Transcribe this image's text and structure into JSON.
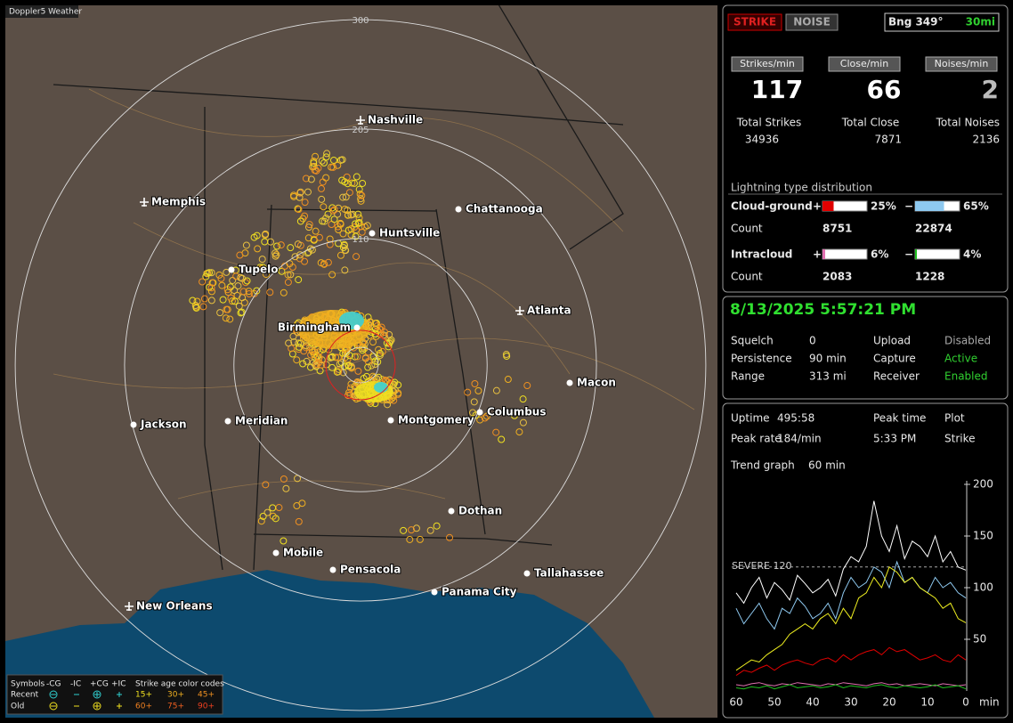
{
  "map": {
    "title": "Doppler5 Weather",
    "range_rings": [
      300,
      205,
      110
    ],
    "cities": [
      "Nashville",
      "Memphis",
      "Chattanooga",
      "Huntsville",
      "Tupelo",
      "Atlanta",
      "Birmingham",
      "Macon",
      "Jackson",
      "Meridian",
      "Montgomery",
      "Columbus",
      "Dothan",
      "Mobile",
      "Pensacola",
      "Tallahassee",
      "Panama City",
      "New Orleans"
    ],
    "legend": {
      "symbols": "Symbols",
      "cg_minus": "-CG",
      "ic_minus": "-IC",
      "cg_plus": "+CG",
      "ic_plus": "+IC",
      "age_title": "Strike age color codes",
      "recent": "Recent",
      "old": "Old",
      "recent_ages": [
        "15+",
        "30+",
        "45+"
      ],
      "old_ages": [
        "60+",
        "75+",
        "90+"
      ]
    }
  },
  "status": {
    "strike": "STRIKE",
    "noise": "NOISE",
    "bearing": "Bng 349°",
    "distance": "30mi"
  },
  "rates": [
    {
      "label": "Strikes/min",
      "value": 117,
      "total_label": "Total Strikes",
      "total": 34936
    },
    {
      "label": "Close/min",
      "value": 66,
      "total_label": "Total Close",
      "total": 7871
    },
    {
      "label": "Noises/min",
      "value": 2,
      "total_label": "Total Noises",
      "total": 2136
    }
  ],
  "distribution": {
    "title": "Lightning type distribution",
    "count_label": "Count",
    "plus": "+",
    "minus": "−",
    "rows": [
      {
        "name": "Cloud-ground",
        "plus_pct": {
          "value": 25,
          "label": "25%"
        },
        "minus_pct": {
          "value": 65,
          "label": "65%"
        },
        "plus_count": 8751,
        "minus_count": 22874,
        "colors": [
          "#e00000",
          "#8ec9f0"
        ]
      },
      {
        "name": "Intracloud",
        "plus_pct": {
          "value": 6,
          "label": "6%"
        },
        "minus_pct": {
          "value": 4,
          "label": "4%"
        },
        "plus_count": 2083,
        "minus_count": 1228,
        "colors": [
          "#e070b0",
          "#20c020"
        ]
      }
    ]
  },
  "info": {
    "date": "8/13/2025 5:57:21 PM",
    "rows": [
      [
        "Squelch",
        0,
        "Upload",
        "Disabled"
      ],
      [
        "Persistence",
        "90 min",
        "Capture",
        "Active"
      ],
      [
        "Range",
        "313 mi",
        "Receiver",
        "Enabled"
      ]
    ]
  },
  "stats": {
    "rows": [
      [
        "Uptime",
        "495:58",
        "Peak time",
        "Plot"
      ],
      [
        "Peak rate",
        "184/min",
        "5:33 PM",
        "Strike"
      ]
    ],
    "trend_label": "Trend graph",
    "trend_span": "60 min"
  },
  "trend": {
    "type": "line",
    "x": [
      60,
      58,
      56,
      54,
      52,
      50,
      48,
      46,
      44,
      42,
      40,
      38,
      36,
      34,
      32,
      30,
      28,
      26,
      24,
      22,
      20,
      18,
      16,
      14,
      12,
      10,
      8,
      6,
      4,
      2,
      0
    ],
    "xlim": [
      60,
      0
    ],
    "xticks": [
      60,
      50,
      40,
      30,
      20,
      10,
      0
    ],
    "x_unit": "min",
    "ylim": [
      0,
      200
    ],
    "yticks": [
      50,
      100,
      150,
      200
    ],
    "severe": {
      "value": 120,
      "label": "SEVERE 120"
    },
    "series": [
      {
        "color": "#ffffff",
        "values": [
          95,
          85,
          100,
          110,
          90,
          105,
          98,
          88,
          112,
          104,
          95,
          100,
          108,
          92,
          118,
          130,
          125,
          140,
          184,
          150,
          135,
          160,
          128,
          145,
          140,
          130,
          150,
          125,
          135,
          120,
          117
        ]
      },
      {
        "color": "#8ec9f0",
        "values": [
          80,
          65,
          75,
          85,
          70,
          60,
          80,
          75,
          90,
          82,
          70,
          75,
          85,
          70,
          95,
          110,
          100,
          105,
          120,
          115,
          100,
          125,
          105,
          110,
          100,
          95,
          110,
          100,
          105,
          95,
          90
        ]
      },
      {
        "color": "#f0f020",
        "values": [
          20,
          25,
          30,
          28,
          35,
          40,
          45,
          55,
          60,
          65,
          60,
          70,
          75,
          65,
          80,
          70,
          90,
          95,
          110,
          100,
          120,
          115,
          105,
          110,
          100,
          95,
          90,
          80,
          85,
          70,
          66
        ]
      },
      {
        "color": "#e00000",
        "values": [
          15,
          20,
          18,
          22,
          25,
          20,
          25,
          28,
          30,
          27,
          25,
          30,
          32,
          28,
          35,
          30,
          35,
          38,
          40,
          35,
          42,
          38,
          40,
          35,
          30,
          32,
          35,
          30,
          28,
          35,
          30
        ]
      },
      {
        "color": "#e070b0",
        "values": [
          6,
          5,
          7,
          8,
          6,
          5,
          7,
          6,
          8,
          7,
          6,
          5,
          7,
          6,
          8,
          7,
          6,
          5,
          7,
          8,
          6,
          7,
          5,
          6,
          7,
          6,
          5,
          7,
          6,
          5,
          6
        ]
      },
      {
        "color": "#20c020",
        "values": [
          3,
          2,
          4,
          3,
          5,
          2,
          4,
          6,
          3,
          4,
          5,
          3,
          4,
          6,
          3,
          5,
          4,
          3,
          5,
          6,
          4,
          3,
          5,
          4,
          3,
          4,
          6,
          3,
          4,
          5,
          2
        ]
      }
    ]
  }
}
